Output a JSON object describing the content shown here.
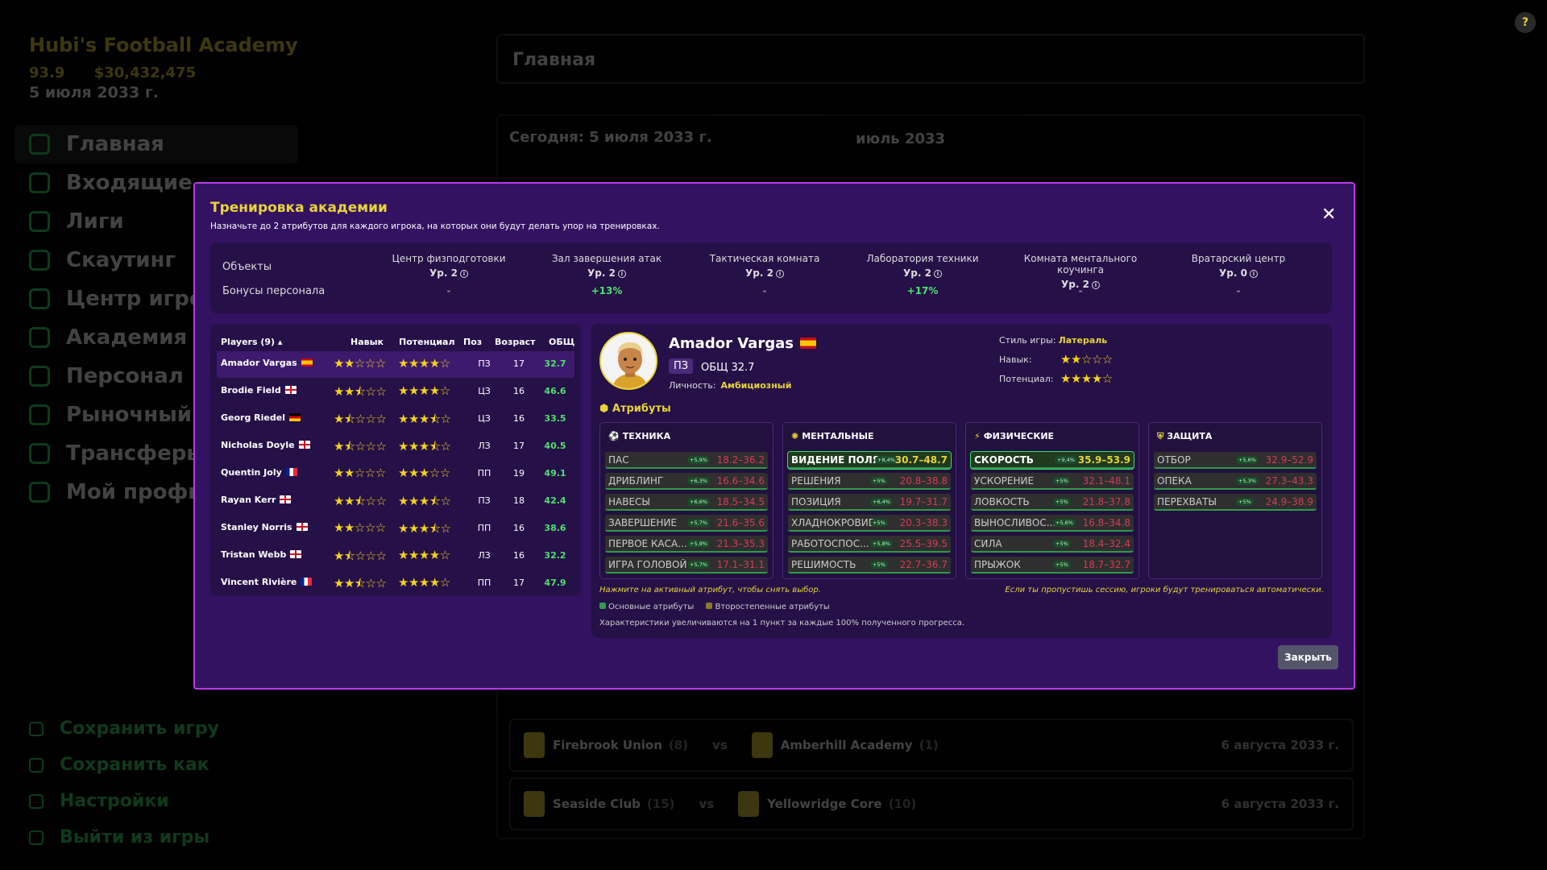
{
  "app": {
    "title": "Hubi's Football Academy",
    "rating": "93.9",
    "money": "$30,432,475",
    "date": "5 июля 2033 г.",
    "header": "Главная",
    "help": "?"
  },
  "nav": [
    "Главная",
    "Входящие",
    "Лиги",
    "Скаутинг",
    "Центр игро",
    "Академия",
    "Персонал",
    "Рыночный с",
    "Трансферы",
    "Мой профи"
  ],
  "bottom_nav": [
    "Сохранить игру",
    "Сохранить как",
    "Настройки",
    "Выйти из игры"
  ],
  "calendar": {
    "today": "Сегодня: 5 июля 2033 г.",
    "month": "июль 2033",
    "matches": [
      {
        "home": "Firebrook Union",
        "home_n": "(8)",
        "vs": "vs",
        "away": "Amberhill Academy",
        "away_n": "(1)",
        "date": "6 августа 2033 г."
      },
      {
        "home": "Seaside Club",
        "home_n": "(15)",
        "vs": "vs",
        "away": "Yellowridge Core",
        "away_n": "(10)",
        "date": "6 августа 2033 г."
      }
    ]
  },
  "modal": {
    "title": "Тренировка академии",
    "subtitle": "Назначьте до 2 атрибутов для каждого игрока, на которых они будут делать упор на тренировках.",
    "close_x": "✕",
    "close_button": "Закрыть",
    "facilities_label": "Объекты",
    "bonuses_label": "Бонусы персонала",
    "facilities": [
      {
        "name": "Центр физподготовки",
        "level": "Ур. 2",
        "bonus": "-"
      },
      {
        "name": "Зал завершения атак",
        "level": "Ур. 2",
        "bonus": "+13%"
      },
      {
        "name": "Тактическая комната",
        "level": "Ур. 2",
        "bonus": "-"
      },
      {
        "name": "Лаборатория техники",
        "level": "Ур. 2",
        "bonus": "+17%"
      },
      {
        "name": "Комната ментального коучинга",
        "level": "Ур. 2",
        "bonus": "-"
      },
      {
        "name": "Вратарский центр",
        "level": "Ур. 0",
        "bonus": "-"
      }
    ],
    "players_header": {
      "players": "Players (9) ▴",
      "skill": "Навык",
      "potential": "Потенциал",
      "pos": "Поз",
      "age": "Возраст",
      "ovr": "ОБЩ"
    },
    "players": [
      {
        "name": "Amador Vargas",
        "flag": "es",
        "skill": 2,
        "potential": 4,
        "pos": "ПЗ",
        "age": "17",
        "ovr": "32.7"
      },
      {
        "name": "Brodie Field",
        "flag": "en",
        "skill": 2.5,
        "potential": 4,
        "pos": "ЦЗ",
        "age": "16",
        "ovr": "46.6"
      },
      {
        "name": "Georg Riedel",
        "flag": "de",
        "skill": 1.5,
        "potential": 3.5,
        "pos": "ЦЗ",
        "age": "16",
        "ovr": "33.5"
      },
      {
        "name": "Nicholas Doyle",
        "flag": "en",
        "skill": 1.5,
        "potential": 3.5,
        "pos": "ЛЗ",
        "age": "17",
        "ovr": "40.5"
      },
      {
        "name": "Quentin Joly",
        "flag": "fr",
        "skill": 2,
        "potential": 3,
        "pos": "ПП",
        "age": "19",
        "ovr": "49.1"
      },
      {
        "name": "Rayan Kerr",
        "flag": "en",
        "skill": 2.5,
        "potential": 3.5,
        "pos": "ПЗ",
        "age": "18",
        "ovr": "42.4"
      },
      {
        "name": "Stanley Norris",
        "flag": "en",
        "skill": 2,
        "potential": 3.5,
        "pos": "ПП",
        "age": "16",
        "ovr": "38.6"
      },
      {
        "name": "Tristan Webb",
        "flag": "en",
        "skill": 1.5,
        "potential": 4,
        "pos": "ЛЗ",
        "age": "16",
        "ovr": "32.2"
      },
      {
        "name": "Vincent Rivière",
        "flag": "fr",
        "skill": 2.5,
        "potential": 4,
        "pos": "ПП",
        "age": "17",
        "ovr": "47.9"
      }
    ],
    "selected": {
      "name": "Amador Vargas",
      "pos": "ПЗ",
      "ovr": "ОБЩ 32.7",
      "personality_label": "Личность:",
      "personality": "Амбициозный",
      "style_label": "Стиль игры:",
      "style": "Латераль",
      "skill_label": "Навык:",
      "skill": 2,
      "potential_label": "Потенциал:",
      "potential": 4
    },
    "attributes_title": "Атрибуты",
    "categories": [
      {
        "title": "ТЕХНИКА",
        "icon": "soccer-ball-icon",
        "attrs": [
          {
            "name": "ПАС",
            "pct": "+5,9%",
            "range": "18.2–36.2",
            "active": false
          },
          {
            "name": "ДРИБЛИНГ",
            "pct": "+6,3%",
            "range": "16.6–34.6",
            "active": false
          },
          {
            "name": "НАВЕСЫ",
            "pct": "+6,6%",
            "range": "18.5–34.5",
            "active": false
          },
          {
            "name": "ЗАВЕРШЕНИЕ",
            "pct": "+5,7%",
            "range": "21.6–35.6",
            "active": false
          },
          {
            "name": "ПЕРВОЕ КАСА...",
            "pct": "+5,9%",
            "range": "21.3–35.3",
            "active": false
          },
          {
            "name": "ИГРА ГОЛОВОЙ",
            "pct": "+5,7%",
            "range": "17.1–31.1",
            "active": false
          }
        ]
      },
      {
        "title": "МЕНТАЛЬНЫЕ",
        "icon": "brain-icon",
        "attrs": [
          {
            "name": "ВИДЕНИЕ ПОЛЯ",
            "pct": "+8,4%",
            "range": "30.7–48.7",
            "active": true
          },
          {
            "name": "РЕШЕНИЯ",
            "pct": "+5%",
            "range": "20.8–38.8",
            "active": false
          },
          {
            "name": "ПОЗИЦИЯ",
            "pct": "+6,4%",
            "range": "19.7–31.7",
            "active": false
          },
          {
            "name": "ХЛАДНОКРОВИЕ",
            "pct": "+5%",
            "range": "20.3–38.3",
            "active": false
          },
          {
            "name": "РАБОТОСПОС...",
            "pct": "+5,8%",
            "range": "25.5–39.5",
            "active": false
          },
          {
            "name": "РЕШИМОСТЬ",
            "pct": "+5%",
            "range": "22.7–36.7",
            "active": false
          }
        ]
      },
      {
        "title": "ФИЗИЧЕСКИЕ",
        "icon": "lightning-icon",
        "attrs": [
          {
            "name": "СКОРОСТЬ",
            "pct": "+9,4%",
            "range": "35.9–53.9",
            "active": true
          },
          {
            "name": "УСКОРЕНИЕ",
            "pct": "+5%",
            "range": "32.1–48.1",
            "active": false
          },
          {
            "name": "ЛОВКОСТЬ",
            "pct": "+5%",
            "range": "21.8–37.8",
            "active": false
          },
          {
            "name": "ВЫНОСЛИВОС...",
            "pct": "+5,6%",
            "range": "16.8–34.8",
            "active": false
          },
          {
            "name": "СИЛА",
            "pct": "+5%",
            "range": "18.4–32.4",
            "active": false
          },
          {
            "name": "ПРЫЖОК",
            "pct": "+5%",
            "range": "18.7–32.7",
            "active": false
          }
        ]
      },
      {
        "title": "ЗАЩИТА",
        "icon": "shield-icon",
        "attrs": [
          {
            "name": "ОТБОР",
            "pct": "+5,6%",
            "range": "32.9–52.9",
            "active": false
          },
          {
            "name": "ОПЕКА",
            "pct": "+5,3%",
            "range": "27.3–43.3",
            "active": false
          },
          {
            "name": "ПЕРЕХВАТЫ",
            "pct": "+5%",
            "range": "24.9–38.9",
            "active": false
          }
        ]
      }
    ],
    "note_left": "Нажмите на активный атрибут, чтобы снять выбор.",
    "note_right": "Если ты пропустишь сессию, игроки будут тренироваться автоматически.",
    "legend_primary": "Основные атрибуты",
    "legend_secondary": "Второстепенные атрибуты",
    "footnote": "Характеристики увеличиваются на 1 пункт за каждые 100% полученного прогресса."
  },
  "colors": {
    "accent": "#e8d33a",
    "modal_bg": "#331262",
    "modal_border": "#b83ae6",
    "green": "#4ee36b",
    "range_red": "#d63b57"
  }
}
